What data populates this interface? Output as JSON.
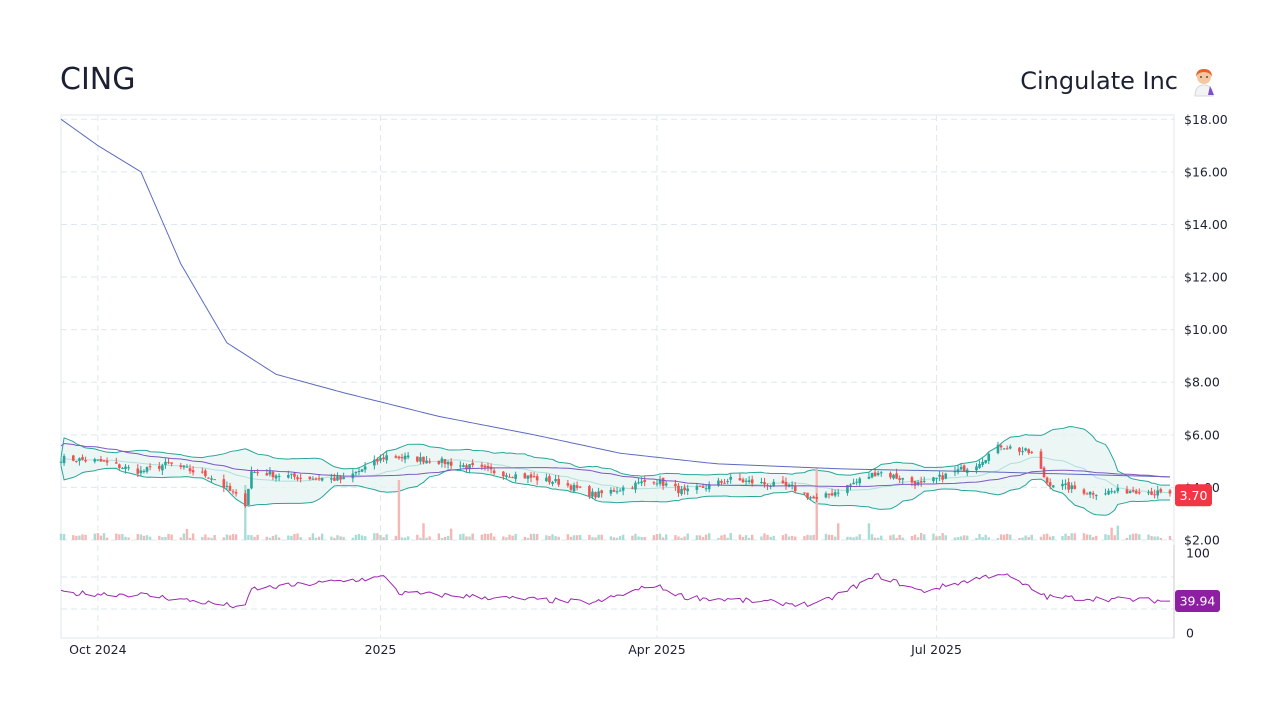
{
  "header": {
    "ticker": "CING",
    "company": "Cingulate Inc"
  },
  "icons": {
    "company_icon": "scientist-emoji-icon"
  },
  "colors": {
    "up": "#26a69a",
    "down": "#ef5350",
    "band_fill": "#e6f4f2",
    "band_line": "#26a69a",
    "ma_long": "#5c6bc0",
    "rsi": "#9c27b0",
    "price_badge": "#f23645",
    "rsi_badge": "#8e1fa3",
    "grid": "#dde9ee"
  },
  "chart_data": {
    "type": "candlestick",
    "title": "",
    "price_axis": {
      "ticks": [
        "$18.00",
        "$16.00",
        "$14.00",
        "$12.00",
        "$10.00",
        "$8.00",
        "$6.00",
        "$4.00",
        "$2.00"
      ],
      "ylim": [
        2,
        18
      ]
    },
    "rsi_axis": {
      "ticks": [
        "100",
        "0"
      ],
      "ylim": [
        0,
        100
      ],
      "guides": [
        70,
        30
      ]
    },
    "x_ticks": [
      "Oct 2024",
      "2025",
      "Apr 2025",
      "Jul 2025"
    ],
    "last_price": "3.70",
    "last_rsi": "39.94",
    "price_key_points": [
      {
        "date": "2024-09-19",
        "close": 5.1
      },
      {
        "date": "2024-10-01",
        "close": 5.0
      },
      {
        "date": "2024-10-15",
        "close": 4.6
      },
      {
        "date": "2024-10-24",
        "close": 4.9
      },
      {
        "date": "2024-11-07",
        "close": 4.4
      },
      {
        "date": "2024-11-18",
        "close": 3.4
      },
      {
        "date": "2024-11-20",
        "close": 4.6
      },
      {
        "date": "2024-12-04",
        "close": 4.4
      },
      {
        "date": "2024-12-20",
        "close": 4.3
      },
      {
        "date": "2025-01-03",
        "close": 5.2
      },
      {
        "date": "2025-01-20",
        "close": 5.0
      },
      {
        "date": "2025-02-07",
        "close": 4.6
      },
      {
        "date": "2025-02-28",
        "close": 4.2
      },
      {
        "date": "2025-03-12",
        "close": 3.7
      },
      {
        "date": "2025-03-31",
        "close": 4.3
      },
      {
        "date": "2025-04-10",
        "close": 3.8
      },
      {
        "date": "2025-04-25",
        "close": 4.3
      },
      {
        "date": "2025-05-15",
        "close": 4.0
      },
      {
        "date": "2025-05-23",
        "close": 3.5
      },
      {
        "date": "2025-06-12",
        "close": 4.6
      },
      {
        "date": "2025-06-26",
        "close": 4.1
      },
      {
        "date": "2025-07-14",
        "close": 4.9
      },
      {
        "date": "2025-07-22",
        "close": 5.6
      },
      {
        "date": "2025-08-01",
        "close": 5.3
      },
      {
        "date": "2025-08-06",
        "close": 4.2
      },
      {
        "date": "2025-08-20",
        "close": 3.8
      },
      {
        "date": "2025-09-05",
        "close": 3.9
      },
      {
        "date": "2025-09-15",
        "close": 3.7
      }
    ],
    "long_ma_key_points": [
      {
        "date": "2024-09-19",
        "value": 18.0
      },
      {
        "date": "2024-10-01",
        "value": 17.0
      },
      {
        "date": "2024-10-15",
        "value": 16.0
      },
      {
        "date": "2024-10-28",
        "value": 12.5
      },
      {
        "date": "2024-11-12",
        "value": 9.5
      },
      {
        "date": "2024-11-28",
        "value": 8.3
      },
      {
        "date": "2024-12-20",
        "value": 7.6
      },
      {
        "date": "2025-01-20",
        "value": 6.7
      },
      {
        "date": "2025-02-20",
        "value": 6.0
      },
      {
        "date": "2025-03-20",
        "value": 5.3
      },
      {
        "date": "2025-04-20",
        "value": 4.9
      },
      {
        "date": "2025-06-01",
        "value": 4.7
      },
      {
        "date": "2025-07-15",
        "value": 4.6
      },
      {
        "date": "2025-09-15",
        "value": 4.4
      }
    ],
    "rsi_key_points": [
      {
        "date": "2024-09-19",
        "value": 50
      },
      {
        "date": "2024-10-15",
        "value": 48
      },
      {
        "date": "2024-11-18",
        "value": 32
      },
      {
        "date": "2024-11-20",
        "value": 55
      },
      {
        "date": "2025-01-03",
        "value": 70
      },
      {
        "date": "2025-01-07",
        "value": 50
      },
      {
        "date": "2025-03-12",
        "value": 38
      },
      {
        "date": "2025-03-31",
        "value": 60
      },
      {
        "date": "2025-04-10",
        "value": 45
      },
      {
        "date": "2025-05-23",
        "value": 35
      },
      {
        "date": "2025-06-12",
        "value": 72
      },
      {
        "date": "2025-06-26",
        "value": 52
      },
      {
        "date": "2025-07-22",
        "value": 75
      },
      {
        "date": "2025-08-06",
        "value": 45
      },
      {
        "date": "2025-09-15",
        "value": 40
      }
    ]
  }
}
